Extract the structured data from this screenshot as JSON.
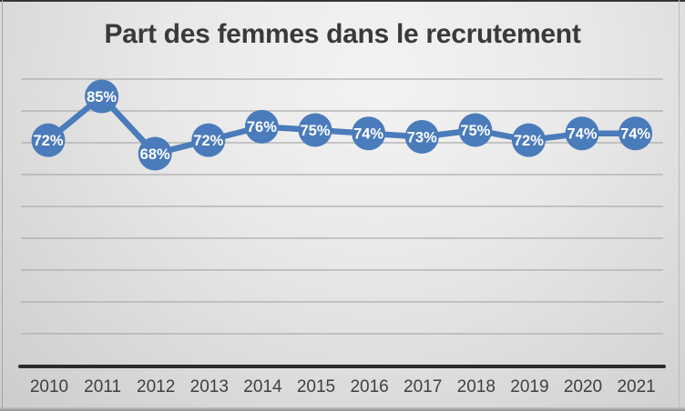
{
  "slide": {
    "title": "Part des femmes dans le recrutement"
  },
  "colors": {
    "accent_blue": "#4a7bba",
    "title_text": "#3a3a3a",
    "axis_tick_text": "#3f3f3f",
    "gridline": "#adadad",
    "axis_line": "#2b2b2b",
    "point_label_text": "#ffffff"
  },
  "chart_data": {
    "type": "line",
    "title": "Part des femmes dans le recrutement",
    "categories": [
      "2010",
      "2011",
      "2012",
      "2013",
      "2014",
      "2015",
      "2016",
      "2017",
      "2018",
      "2019",
      "2020",
      "2021"
    ],
    "values": [
      72,
      85,
      68,
      72,
      76,
      75,
      74,
      73,
      75,
      72,
      74,
      74
    ],
    "value_labels": [
      "72%",
      "85%",
      "68%",
      "72%",
      "76%",
      "75%",
      "74%",
      "73%",
      "75%",
      "72%",
      "74%",
      "74%"
    ],
    "unit": "%",
    "xlabel": "",
    "ylabel": "",
    "y_axis_tick_labels": "none",
    "grid": "horizontal",
    "legend": "none",
    "marker": "filled-circle-with-label"
  }
}
